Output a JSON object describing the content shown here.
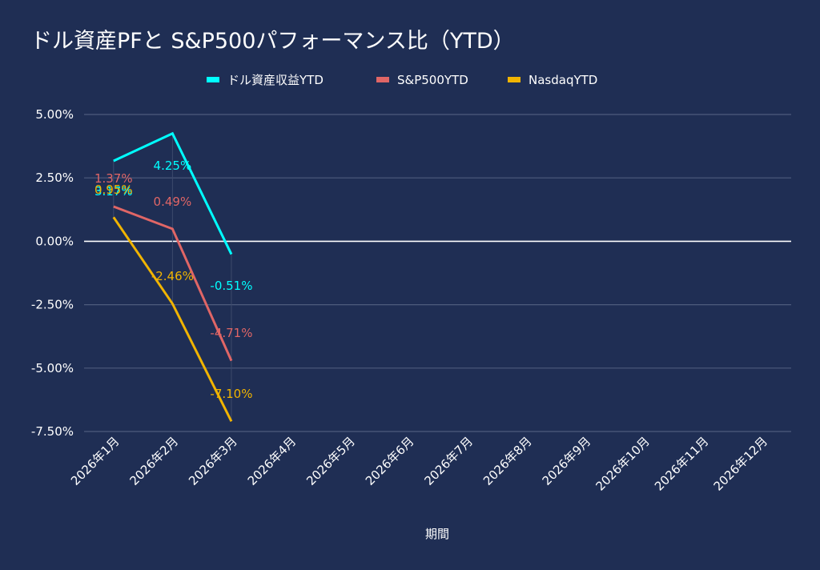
{
  "chart_data": {
    "type": "line",
    "title": "ドル資産PFと S&P500パフォーマンス比（YTD）",
    "xlabel": "期間",
    "ylabel": "",
    "categories": [
      "2026年1月",
      "2026年2月",
      "2026年3月",
      "2026年4月",
      "2026年5月",
      "2026年6月",
      "2026年7月",
      "2026年8月",
      "2026年9月",
      "2026年10月",
      "2026年11月",
      "2026年12月"
    ],
    "ylim": [
      -7.5,
      5.0
    ],
    "yticks": [
      5.0,
      2.5,
      0.0,
      -2.5,
      -5.0,
      -7.5
    ],
    "ytick_labels": [
      "5.00%",
      "2.50%",
      "0.00%",
      "-2.50%",
      "-5.00%",
      "-7.50%"
    ],
    "grid": true,
    "legend_position": "top",
    "series": [
      {
        "name": "ドル資産収益YTD",
        "color": "#00ffff",
        "values": [
          3.17,
          4.25,
          -0.51,
          null,
          null,
          null,
          null,
          null,
          null,
          null,
          null,
          null
        ],
        "labels": [
          "3.17%",
          "4.25%",
          "-0.51%"
        ]
      },
      {
        "name": "S&P500YTD",
        "color": "#e06666",
        "values": [
          1.37,
          0.49,
          -4.71,
          null,
          null,
          null,
          null,
          null,
          null,
          null,
          null,
          null
        ],
        "labels": [
          "1.37%",
          "0.49%",
          "-4.71%"
        ]
      },
      {
        "name": "NasdaqYTD",
        "color": "#f1b400",
        "values": [
          0.95,
          -2.46,
          -7.1,
          null,
          null,
          null,
          null,
          null,
          null,
          null,
          null,
          null
        ],
        "labels": [
          "0.95%",
          "-2.46%",
          "-7.10%"
        ]
      }
    ]
  }
}
